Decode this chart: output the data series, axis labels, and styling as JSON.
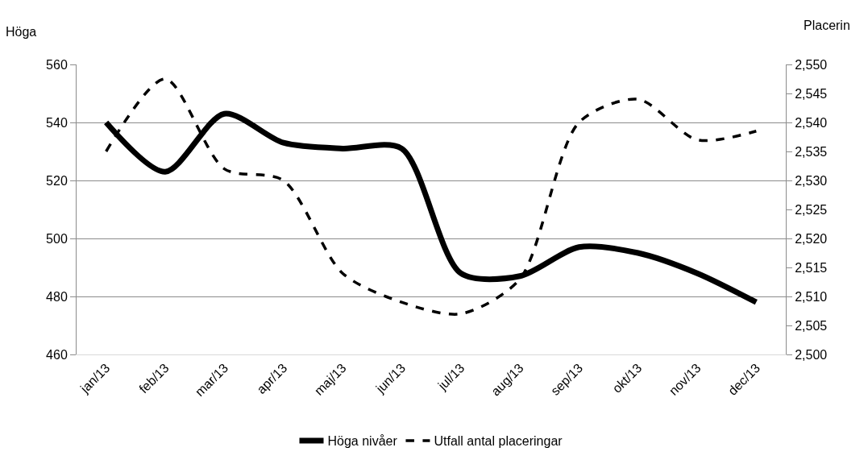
{
  "chart_data": {
    "type": "line",
    "ylabel": "Höga",
    "y2label": "Placerin",
    "categories": [
      "jan/13",
      "feb/13",
      "mar/13",
      "apr/13",
      "maj/13",
      "jun/13",
      "jul/13",
      "aug/13",
      "sep/13",
      "okt/13",
      "nov/13",
      "dec/13"
    ],
    "series": [
      {
        "name": "Höga nivåer",
        "color": "#000000",
        "line_style": "solid",
        "values": [
          540,
          523,
          543,
          533,
          531,
          531,
          488,
          487,
          497,
          495,
          488,
          478
        ]
      },
      {
        "name": "Utfall antal placeringar",
        "color": "#000000",
        "line_style": "dashed",
        "axis": "y2",
        "values": [
          2535,
          2547.5,
          2532,
          2530,
          2514,
          2509,
          2507,
          2513,
          2540,
          2544,
          2537,
          2538.5
        ]
      }
    ],
    "ylim": [
      460,
      560
    ],
    "yticks": [
      460,
      480,
      500,
      520,
      540,
      560
    ],
    "y2lim": [
      2500,
      2550
    ],
    "y2ticks": [
      {
        "value": 2500,
        "label": "2,500"
      },
      {
        "value": 2505,
        "label": "2,505"
      },
      {
        "value": 2510,
        "label": "2,510"
      },
      {
        "value": 2515,
        "label": "2,515"
      },
      {
        "value": 2520,
        "label": "2,520"
      },
      {
        "value": 2525,
        "label": "2,525"
      },
      {
        "value": 2530,
        "label": "2,530"
      },
      {
        "value": 2535,
        "label": "2,535"
      },
      {
        "value": 2540,
        "label": "2,540"
      },
      {
        "value": 2545,
        "label": "2,545"
      },
      {
        "value": 2550,
        "label": "2,550"
      }
    ],
    "grid": "y",
    "legend": "bottom",
    "marker": "none"
  }
}
